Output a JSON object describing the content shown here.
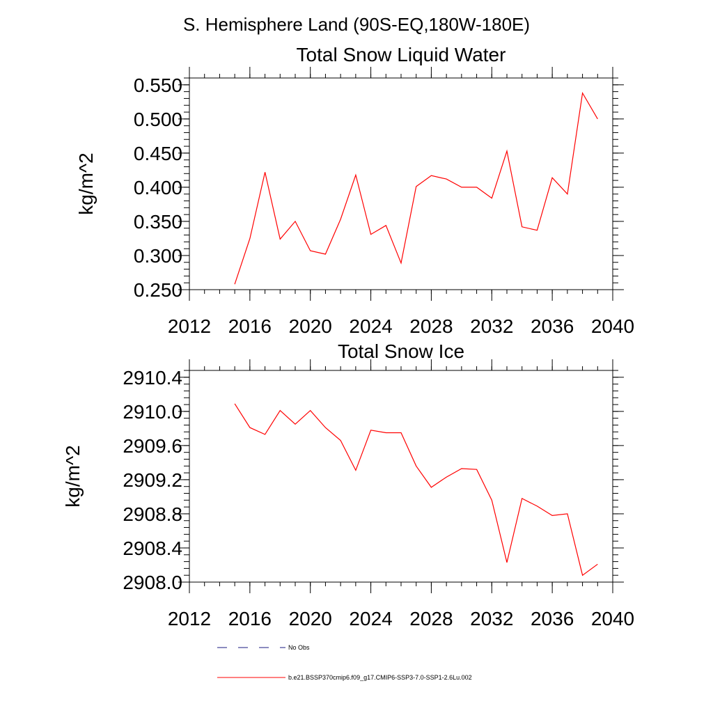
{
  "figure_title": "S. Hemisphere Land (90S-EQ,180W-180E)",
  "colors": {
    "series": "#ff0000",
    "obs": "#1a1a80",
    "axis": "#000000"
  },
  "chart_data": [
    {
      "type": "line",
      "title": "Total Snow Liquid Water",
      "ylabel": "kg/m^2",
      "xlabel": "",
      "xlim": [
        2012,
        2040
      ],
      "ylim": [
        0.25,
        0.56
      ],
      "xticks": [
        2012,
        2016,
        2020,
        2024,
        2028,
        2032,
        2036,
        2040
      ],
      "yticks": [
        "0.250",
        "0.300",
        "0.350",
        "0.400",
        "0.450",
        "0.500",
        "0.550"
      ],
      "series": [
        {
          "name": "b.e21.BSSP370cmip6.f09_g17.CMIP6-SSP3-7.0-SSP1-2.6Lu.002",
          "x": [
            2015,
            2016,
            2017,
            2018,
            2019,
            2020,
            2021,
            2022,
            2023,
            2024,
            2025,
            2026,
            2027,
            2028,
            2029,
            2030,
            2031,
            2032,
            2033,
            2034,
            2035,
            2036,
            2037,
            2038,
            2039
          ],
          "y": [
            0.258,
            0.325,
            0.422,
            0.324,
            0.35,
            0.307,
            0.302,
            0.353,
            0.418,
            0.331,
            0.344,
            0.289,
            0.401,
            0.417,
            0.412,
            0.4,
            0.4,
            0.384,
            0.453,
            0.342,
            0.337,
            0.414,
            0.39,
            0.538,
            0.5
          ]
        }
      ]
    },
    {
      "type": "line",
      "title": "Total Snow Ice",
      "ylabel": "kg/m^2",
      "xlabel": "",
      "xlim": [
        2012,
        2040
      ],
      "ylim": [
        2908.0,
        2910.48
      ],
      "xticks": [
        2012,
        2016,
        2020,
        2024,
        2028,
        2032,
        2036,
        2040
      ],
      "yticks": [
        "2908.0",
        "2908.4",
        "2908.8",
        "2909.2",
        "2909.6",
        "2910.0",
        "2910.4"
      ],
      "series": [
        {
          "name": "b.e21.BSSP370cmip6.f09_g17.CMIP6-SSP3-7.0-SSP1-2.6Lu.002",
          "x": [
            2015,
            2016,
            2017,
            2018,
            2019,
            2020,
            2021,
            2022,
            2023,
            2024,
            2025,
            2026,
            2027,
            2028,
            2029,
            2030,
            2031,
            2032,
            2033,
            2034,
            2035,
            2036,
            2037,
            2038,
            2039
          ],
          "y": [
            2910.09,
            2909.81,
            2909.73,
            2910.01,
            2909.85,
            2910.01,
            2909.81,
            2909.66,
            2909.31,
            2909.78,
            2909.75,
            2909.75,
            2909.36,
            2909.11,
            2909.23,
            2909.33,
            2909.32,
            2908.96,
            2908.23,
            2908.98,
            2908.89,
            2908.78,
            2908.8,
            2908.08,
            2908.21
          ]
        }
      ]
    }
  ],
  "legend": [
    {
      "label": "No Obs",
      "style": "dashed"
    },
    {
      "label": "b.e21.BSSP370cmip6.f09_g17.CMIP6-SSP3-7.0-SSP1-2.6Lu.002",
      "style": "solid"
    }
  ]
}
